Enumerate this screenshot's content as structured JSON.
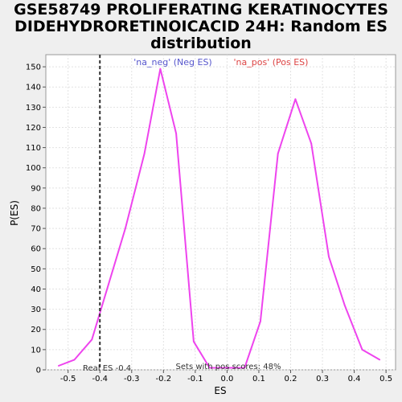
{
  "chart_data": {
    "type": "line",
    "title_lines": [
      "GSE58749 PROLIFERATING KERATINOCYTES",
      "DIDEHYDRORETINOICACID 24H: Random ES",
      "distribution"
    ],
    "xlabel": "ES",
    "ylabel": "P(ES)",
    "xlim": [
      -0.57,
      0.53
    ],
    "ylim": [
      0,
      156
    ],
    "x_ticks": [
      -0.5,
      -0.4,
      -0.3,
      -0.2,
      -0.1,
      0.0,
      0.1,
      0.2,
      0.3,
      0.4,
      0.5
    ],
    "x_tick_labels": [
      "-0.5",
      "-0.4",
      "-0.3",
      "-0.2",
      "-0.1",
      "0.0",
      "0.1",
      "0.2",
      "0.3",
      "0.4",
      "0.5"
    ],
    "y_ticks": [
      0,
      10,
      20,
      30,
      40,
      50,
      60,
      70,
      80,
      90,
      100,
      110,
      120,
      130,
      140,
      150
    ],
    "grid": true,
    "series": [
      {
        "color": "#ee44ee",
        "x": [
          -0.53,
          -0.48,
          -0.425,
          -0.32,
          -0.26,
          -0.21,
          -0.16,
          -0.105,
          -0.055,
          0.0,
          0.055,
          0.105,
          0.16,
          0.215,
          0.265,
          0.32,
          0.37,
          0.425,
          0.48
        ],
        "y": [
          2,
          5,
          15,
          70,
          107,
          149,
          117,
          14,
          1,
          1,
          1,
          24,
          107,
          134,
          112,
          56,
          32,
          10,
          5
        ]
      }
    ],
    "real_es": -0.4,
    "legend": {
      "neg_label": "'na_neg' (Neg ES)",
      "pos_label": "'na_pos' (Pos ES)",
      "neg_color": "#5555cc",
      "pos_color": "#dd4444"
    },
    "annotations": {
      "real_es_label": "Real ES -0.4",
      "pos_scores_label": "Sets with pos scores: 48%"
    }
  }
}
